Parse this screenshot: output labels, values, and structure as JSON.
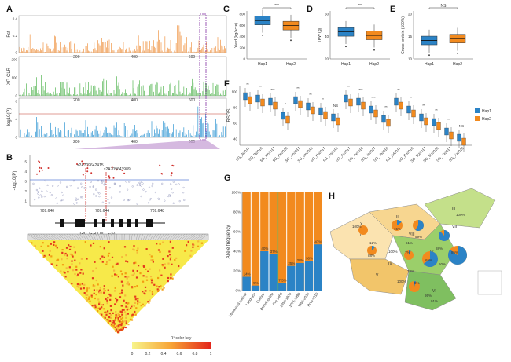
{
  "panels": {
    "A": {
      "label": "A",
      "tracks": [
        {
          "ylabel": "Fst",
          "color": "#f2a35e",
          "yticks": [
            "0",
            "0.2",
            "0.4"
          ]
        },
        {
          "ylabel": "XP-CLR",
          "color": "#6cc06a",
          "yticks": [
            "0",
            "100",
            "200"
          ]
        },
        {
          "ylabel": "-log10(P)",
          "color": "#4aa3d8",
          "yticks": [
            "0",
            "4",
            "8"
          ]
        }
      ],
      "xticks": [
        "200",
        "400",
        "600"
      ]
    },
    "B": {
      "label": "B",
      "ylabel": "-log10(P)",
      "yticks": [
        "1",
        "2",
        "3",
        "4",
        "5"
      ],
      "xticks": [
        "709.640",
        "709.644",
        "709.648"
      ],
      "snp1": "s2A709642415",
      "snp2": "s2A709643989",
      "alleles": "(G/C, G-R)(T/C, F-S)",
      "color_key_title": "R² color key",
      "color_key_ticks": [
        "0",
        "0.2",
        "0.4",
        "0.6",
        "0.8",
        "1"
      ]
    },
    "C": {
      "label": "C",
      "ylabel": "Yield (kg/acre)",
      "yticks": [
        "0",
        "200",
        "400",
        "600",
        "800"
      ],
      "groups": [
        "Hap1",
        "Hap2"
      ],
      "sig": "***"
    },
    "D": {
      "label": "D",
      "ylabel": "TKW (g)",
      "yticks": [
        "20",
        "40",
        "60"
      ],
      "groups": [
        "Hap1",
        "Hap2"
      ],
      "sig": "***"
    },
    "E": {
      "label": "E",
      "ylabel": "Crude protein (100%)",
      "yticks": [
        "10",
        "15",
        "20"
      ],
      "groups": [
        "Hap1",
        "Hap2"
      ],
      "sig": "NS"
    },
    "F": {
      "label": "F",
      "ylabel": "RSGS",
      "yticks": [
        "40",
        "60",
        "80",
        "100"
      ],
      "legend": [
        "Hap1",
        "Hap2"
      ],
      "sig": [
        "**",
        "**",
        "***",
        "*",
        "**",
        "**",
        "*",
        "NS",
        "**",
        "***",
        "***",
        "**",
        "**",
        "*",
        "**",
        "**",
        "**",
        "NS"
      ],
      "xlabels": [
        "SG_Bj2017",
        "SG_Bj2019",
        "SG_Hn2017",
        "SG_Hn2019",
        "SG_Jm2017",
        "SG_Jm2019",
        "SG_Hs2017",
        "SG_Hs2019",
        "SG_Ay2017",
        "SG_Ay2019",
        "SG_Ya2017",
        "SG_Ya2019",
        "SG_Bd2017",
        "SG_Bd2019",
        "SG_Sjz2017",
        "SG_Sjz2019",
        "SG_Xx2017",
        "SG_Xx2019"
      ]
    },
    "G": {
      "label": "G",
      "ylabel": "Allele frequency",
      "yticks": [
        "0%",
        "20%",
        "40%",
        "60%",
        "80%",
        "100%"
      ],
      "categories": [
        "Introduced cultivar",
        "Landrace",
        "Cultivar",
        "Breeding line",
        "Pre 1950",
        "1951-1970",
        "1971-1990",
        "1991-2010",
        "Post-2010"
      ],
      "hap1_pct": [
        14,
        5,
        40,
        37,
        7.5,
        25,
        28,
        30,
        47
      ],
      "labels": [
        "14%",
        "5%",
        "40%",
        "37%",
        "7.5%",
        "25%",
        "28%",
        "30%",
        "47%"
      ]
    },
    "H": {
      "label": "H",
      "regions": [
        "I",
        "II",
        "III",
        "IV",
        "V",
        "VI",
        "VII",
        "VIII",
        "IX",
        "X"
      ],
      "pct_labels": [
        "100%",
        "100%",
        "100%",
        "15%",
        "61%",
        "59%",
        "88%",
        "85%",
        "65%",
        "60%",
        "100%",
        "5%",
        "95%",
        "12%",
        "88%",
        "7%",
        "91%",
        "33%"
      ]
    }
  },
  "colors": {
    "hap1": "#2b83c6",
    "hap2": "#f28a1e",
    "green": "#5cb85c"
  },
  "chart_data": [
    {
      "type": "box",
      "title": "",
      "ylabel": "Yield (kg/acre)",
      "categories": [
        "Hap1",
        "Hap2"
      ],
      "medians": [
        680,
        590
      ],
      "ylim": [
        0,
        850
      ]
    },
    {
      "type": "box",
      "title": "",
      "ylabel": "TKW (g)",
      "categories": [
        "Hap1",
        "Hap2"
      ],
      "medians": [
        46,
        42
      ],
      "ylim": [
        15,
        70
      ]
    },
    {
      "type": "box",
      "title": "",
      "ylabel": "Crude protein (100%)",
      "categories": [
        "Hap1",
        "Hap2"
      ],
      "medians": [
        14,
        14.5
      ],
      "ylim": [
        9,
        22
      ]
    },
    {
      "type": "bar",
      "title": "",
      "ylabel": "Allele frequency",
      "categories": [
        "Introduced cultivar",
        "Landrace",
        "Cultivar",
        "Breeding line",
        "Pre 1950",
        "1951-1970",
        "1971-1990",
        "1991-2010",
        "Post-2010"
      ],
      "series": [
        {
          "name": "Hap1",
          "values": [
            14,
            5,
            40,
            37,
            7.5,
            25,
            28,
            30,
            47
          ]
        }
      ],
      "ylim": [
        0,
        100
      ]
    }
  ]
}
